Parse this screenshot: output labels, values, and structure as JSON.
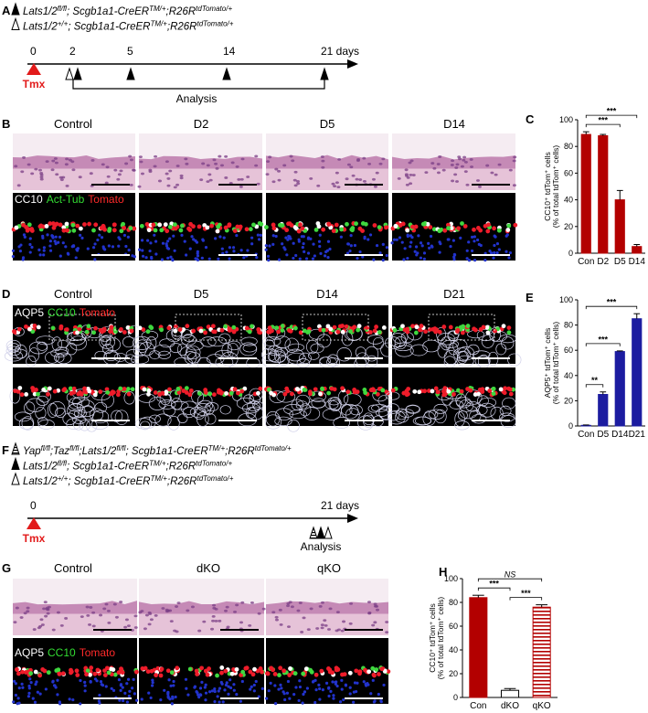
{
  "panels": {
    "A": {
      "label": "A",
      "genotypes": [
        [
          [
            "Lats1/2",
            "fl/fl"
          ],
          [
            "; Scgb1a1-CreER",
            "TM/+"
          ],
          [
            ";R26R",
            "tdTomato/+"
          ]
        ],
        [
          [
            "Lats1/2",
            "+/+"
          ],
          [
            "; Scgb1a1-CreER",
            "TM/+"
          ],
          [
            ";R26R",
            "tdTomato/+"
          ]
        ]
      ],
      "timeline": [
        "0",
        "2",
        "5",
        "14",
        "21 days"
      ],
      "treatment": "Tmx",
      "analysis": "Analysis"
    },
    "B": {
      "label": "B",
      "columns": [
        "Control",
        "D2",
        "D5",
        "D14"
      ],
      "stain": [
        {
          "text": "CC10",
          "color": "#ffffff"
        },
        {
          "text": "Act-Tub",
          "color": "#33dd33"
        },
        {
          "text": "Tomato",
          "color": "#ff2a2a"
        }
      ]
    },
    "D": {
      "label": "D",
      "columns": [
        "Control",
        "D5",
        "D14",
        "D21"
      ],
      "stain": [
        {
          "text": "AQP5",
          "color": "#ffffff"
        },
        {
          "text": "CC10",
          "color": "#33dd33"
        },
        {
          "text": "Tomato",
          "color": "#ff2a2a"
        }
      ]
    },
    "F": {
      "label": "F",
      "genotypes": [
        [
          [
            "Yap",
            "fl/fl"
          ],
          [
            ";Taz",
            "fl/fl"
          ],
          [
            ";Lats1/2",
            "fl/fl"
          ],
          [
            "; Scgb1a1-CreER",
            "TM/+"
          ],
          [
            ";R26R",
            "tdTomato/+"
          ]
        ],
        [
          [
            "Lats1/2",
            "fl/fl"
          ],
          [
            "; Scgb1a1-CreER",
            "TM/+"
          ],
          [
            ";R26R",
            "tdTomato/+"
          ]
        ],
        [
          [
            "Lats1/2",
            "+/+"
          ],
          [
            "; Scgb1a1-CreER",
            "TM/+"
          ],
          [
            ";R26R",
            "tdTomato/+"
          ]
        ]
      ],
      "timeline": [
        "0",
        "21 days"
      ],
      "treatment": "Tmx",
      "analysis": "Analysis"
    },
    "G": {
      "label": "G",
      "columns": [
        "Control",
        "dKO",
        "qKO"
      ],
      "stain": [
        {
          "text": "AQP5",
          "color": "#ffffff"
        },
        {
          "text": "CC10",
          "color": "#33dd33"
        },
        {
          "text": "Tomato",
          "color": "#ff2a2a"
        }
      ]
    }
  },
  "chart_data": [
    {
      "panel": "C",
      "type": "bar",
      "y_label": [
        "CC10⁺ tdTom⁺ cells",
        "(% of total tdTom⁺ cells)"
      ],
      "categories": [
        "Con",
        "D2",
        "D5",
        "D14"
      ],
      "values": [
        89,
        88,
        40,
        5
      ],
      "errors": [
        2,
        1,
        7,
        1.5
      ],
      "color": "#b30000",
      "ylim": [
        0,
        100
      ],
      "yticks": [
        0,
        20,
        40,
        60,
        80,
        100
      ],
      "comparisons": [
        {
          "pair": [
            0,
            2
          ],
          "label": "***"
        },
        {
          "pair": [
            0,
            3
          ],
          "label": "***"
        }
      ]
    },
    {
      "panel": "E",
      "type": "bar",
      "y_label": [
        "AQP5⁺ tdTom⁺ cells",
        "(% of total tdTom⁺ cells)"
      ],
      "categories": [
        "Con",
        "D5",
        "D14",
        "D21"
      ],
      "values": [
        0.5,
        25,
        59,
        85
      ],
      "errors": [
        0.3,
        2,
        0.5,
        4
      ],
      "color": "#1c1ca0",
      "ylim": [
        0,
        100
      ],
      "yticks": [
        0,
        20,
        40,
        60,
        80,
        100
      ],
      "comparisons": [
        {
          "pair": [
            0,
            1
          ],
          "label": "**"
        },
        {
          "pair": [
            0,
            2
          ],
          "label": "***"
        },
        {
          "pair": [
            0,
            3
          ],
          "label": "***"
        }
      ]
    },
    {
      "panel": "H",
      "type": "bar",
      "y_label": [
        "CC10⁺ tdTom⁺ cells",
        "(% of total tdTom⁺ cells)"
      ],
      "categories": [
        "Con",
        "dKO",
        "qKO"
      ],
      "values": [
        84,
        6,
        76
      ],
      "errors": [
        2,
        1.5,
        2
      ],
      "color": "#b30000",
      "bar_styles": [
        "solid",
        "open",
        "hatched"
      ],
      "ylim": [
        0,
        100
      ],
      "yticks": [
        0,
        20,
        40,
        60,
        80,
        100
      ],
      "comparisons": [
        {
          "pair": [
            0,
            1
          ],
          "label": "***"
        },
        {
          "pair": [
            1,
            2
          ],
          "label": "***"
        },
        {
          "pair": [
            0,
            2
          ],
          "label": "NS",
          "italic": true
        }
      ]
    }
  ]
}
